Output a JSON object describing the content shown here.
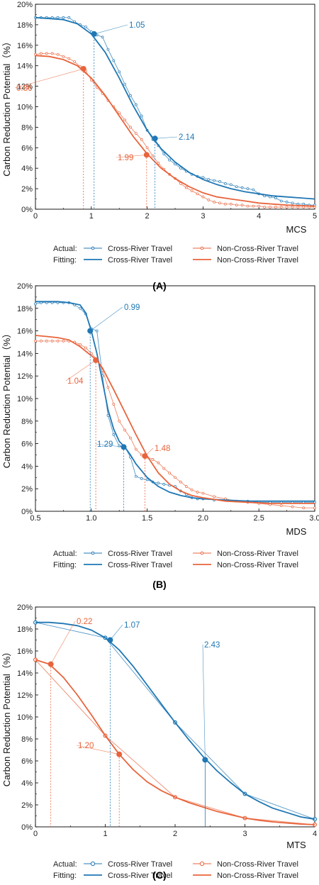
{
  "colors": {
    "blue": "#1f77b4",
    "orange": "#e8643c",
    "axis": "#000000"
  },
  "panels": [
    {
      "id": "A",
      "panel_label": "(A)",
      "xlabel": "MCS",
      "ylabel": "Carbon Reduction Potential（%）",
      "xlim": [
        0,
        5
      ],
      "ylim": [
        0,
        20
      ],
      "xticks": [
        0,
        1,
        2,
        3,
        4,
        5
      ],
      "xtick_labels": [
        "0",
        "1",
        "2",
        "3",
        "4",
        "5"
      ],
      "yticks": [
        0,
        2,
        4,
        6,
        8,
        10,
        12,
        14,
        16,
        18,
        20
      ],
      "ytick_labels": [
        "0%",
        "2%",
        "4%",
        "6%",
        "8%",
        "10%",
        "12%",
        "14%",
        "16%",
        "18%",
        "20%"
      ],
      "legend": {
        "actual_label": "Actual:",
        "fitting_label": "Fitting:",
        "entries": [
          "Cross-River Travel",
          "Non-Cross-River Travel",
          "Cross-River Travel",
          "Non-Cross-River Travel"
        ]
      }
    },
    {
      "id": "B",
      "panel_label": "(B)",
      "xlabel": "MDS",
      "ylabel": "Carbon Reduction Potential（%）",
      "xlim": [
        0.5,
        3.0
      ],
      "ylim": [
        0,
        20
      ],
      "xticks": [
        0.5,
        1.0,
        1.5,
        2.0,
        2.5,
        3.0
      ],
      "xtick_labels": [
        "0.5",
        "1.0",
        "1.5",
        "2.0",
        "2.5",
        "3.0"
      ],
      "yticks": [
        0,
        2,
        4,
        6,
        8,
        10,
        12,
        14,
        16,
        18,
        20
      ],
      "ytick_labels": [
        "0%",
        "2%",
        "4%",
        "6%",
        "8%",
        "10%",
        "12%",
        "14%",
        "16%",
        "18%",
        "20%"
      ],
      "legend": {
        "actual_label": "Actual:",
        "fitting_label": "Fitting:",
        "entries": [
          "Cross-River Travel",
          "Non-Cross-River Travel",
          "Cross-River Travel",
          "Non-Cross-River Travel"
        ]
      }
    },
    {
      "id": "C",
      "panel_label": "(C)",
      "xlabel": "MTS",
      "ylabel": "Carbon Reduction Potential（%）",
      "xlim": [
        0,
        4
      ],
      "ylim": [
        0,
        20
      ],
      "xticks": [
        0,
        1,
        2,
        3,
        4
      ],
      "xtick_labels": [
        "0",
        "1",
        "2",
        "3",
        "4"
      ],
      "yticks": [
        0,
        2,
        4,
        6,
        8,
        10,
        12,
        14,
        16,
        18,
        20
      ],
      "ytick_labels": [
        "0%",
        "2%",
        "4%",
        "6%",
        "8%",
        "10%",
        "12%",
        "14%",
        "16%",
        "18%",
        "20%"
      ],
      "legend": {
        "actual_label": "Actual:",
        "fitting_label": "Fitting:",
        "entries": [
          "Cross-River Travel",
          "Non-Cross-River Travel",
          "Cross-River Travel",
          "Non-Cross-River Travel"
        ]
      }
    }
  ],
  "chart_data": [
    {
      "type": "line",
      "xlabel": "MCS",
      "ylabel": "Carbon Reduction Potential（%）",
      "xlim": [
        0,
        5
      ],
      "ylim": [
        0,
        20
      ],
      "grid": false,
      "legend_placement": "bottom",
      "series": [
        {
          "name": "Cross-River Travel",
          "kind": "actual",
          "color": "#1f77b4",
          "x": [
            0.0,
            0.1,
            0.2,
            0.3,
            0.4,
            0.5,
            0.6,
            0.7,
            0.8,
            0.9,
            1.0,
            1.1,
            1.2,
            1.3,
            1.4,
            1.5,
            1.6,
            1.7,
            1.8,
            1.9,
            2.0,
            2.1,
            2.2,
            2.3,
            2.4,
            2.5,
            2.6,
            2.7,
            2.8,
            2.9,
            3.0,
            3.1,
            3.2,
            3.3,
            3.4,
            3.5,
            3.6,
            3.7,
            3.8,
            3.9,
            4.0,
            4.1,
            4.2,
            4.3,
            4.4,
            4.5,
            4.6,
            4.7,
            4.8,
            4.9,
            5.0
          ],
          "y": [
            18.7,
            18.7,
            18.7,
            18.7,
            18.7,
            18.7,
            18.7,
            18.3,
            18.0,
            17.8,
            17.3,
            17.0,
            16.8,
            15.6,
            14.5,
            13.4,
            12.2,
            11.1,
            10.2,
            9.1,
            7.7,
            6.8,
            6.2,
            5.4,
            4.8,
            4.4,
            4.0,
            3.7,
            3.4,
            3.2,
            3.1,
            2.9,
            2.8,
            2.7,
            2.5,
            2.4,
            2.2,
            2.1,
            2.0,
            1.9,
            1.5,
            1.3,
            1.2,
            1.1,
            0.8,
            0.7,
            0.6,
            0.5,
            0.5,
            0.4,
            0.4
          ]
        },
        {
          "name": "Non-Cross-River Travel",
          "kind": "actual",
          "color": "#e8643c",
          "x": [
            0.0,
            0.1,
            0.2,
            0.3,
            0.4,
            0.5,
            0.6,
            0.7,
            0.8,
            0.9,
            1.0,
            1.1,
            1.2,
            1.3,
            1.4,
            1.5,
            1.6,
            1.7,
            1.8,
            1.9,
            2.0,
            2.1,
            2.2,
            2.3,
            2.4,
            2.5,
            2.6,
            2.7,
            2.8,
            2.9,
            3.0,
            3.1,
            3.2,
            3.3,
            3.4,
            3.5,
            3.6,
            3.7,
            3.8,
            3.9,
            4.0,
            4.1,
            4.2,
            4.3,
            4.4,
            4.5,
            4.6,
            4.7,
            4.8,
            4.9,
            5.0
          ],
          "y": [
            15.1,
            15.2,
            15.2,
            15.2,
            15.1,
            14.9,
            14.7,
            14.4,
            13.9,
            13.5,
            12.6,
            11.9,
            11.3,
            10.6,
            10.0,
            9.4,
            8.7,
            8.0,
            7.4,
            6.8,
            6.0,
            5.2,
            4.5,
            3.9,
            3.4,
            3.0,
            2.5,
            2.1,
            1.8,
            1.5,
            1.2,
            0.9,
            0.7,
            0.6,
            0.5,
            0.5,
            0.4,
            0.4,
            0.3,
            0.3,
            0.3,
            0.2,
            0.2,
            0.2,
            0.2,
            0.2,
            0.2,
            0.2,
            0.2,
            0.2,
            0.2
          ]
        },
        {
          "name": "Cross-River Travel",
          "kind": "fitting",
          "color": "#1f77b4",
          "x": [
            0.0,
            0.25,
            0.5,
            0.75,
            1.0,
            1.25,
            1.5,
            1.75,
            2.0,
            2.25,
            2.5,
            2.75,
            3.0,
            3.25,
            3.5,
            3.75,
            4.0,
            4.25,
            4.5,
            4.75,
            5.0
          ],
          "y": [
            18.7,
            18.6,
            18.5,
            18.1,
            17.1,
            15.3,
            12.8,
            10.1,
            7.7,
            5.9,
            4.6,
            3.6,
            2.9,
            2.4,
            2.0,
            1.7,
            1.5,
            1.3,
            1.2,
            1.1,
            1.0
          ]
        },
        {
          "name": "Non-Cross-River Travel",
          "kind": "fitting",
          "color": "#e8643c",
          "x": [
            0.0,
            0.25,
            0.5,
            0.75,
            1.0,
            1.25,
            1.5,
            1.75,
            2.0,
            2.25,
            2.5,
            2.75,
            3.0,
            3.25,
            3.5,
            3.75,
            4.0,
            4.25,
            4.5,
            4.75,
            5.0
          ],
          "y": [
            15.0,
            14.9,
            14.6,
            14.0,
            12.8,
            11.1,
            9.1,
            7.1,
            5.4,
            4.0,
            3.0,
            2.2,
            1.6,
            1.2,
            1.0,
            0.8,
            0.6,
            0.5,
            0.4,
            0.35,
            0.3
          ]
        }
      ],
      "highlights": [
        {
          "x": 1.05,
          "y": 17.1,
          "label": "1.05",
          "color": "#1f77b4"
        },
        {
          "x": 2.14,
          "y": 6.9,
          "label": "2.14",
          "color": "#1f77b4"
        },
        {
          "x": 0.86,
          "y": 13.7,
          "label": "0.86",
          "color": "#e8643c"
        },
        {
          "x": 1.99,
          "y": 5.3,
          "label": "1.99",
          "color": "#e8643c"
        }
      ]
    },
    {
      "type": "line",
      "xlabel": "MDS",
      "ylabel": "Carbon Reduction Potential（%）",
      "xlim": [
        0.5,
        3.0
      ],
      "ylim": [
        0,
        20
      ],
      "grid": false,
      "legend_placement": "bottom",
      "series": [
        {
          "name": "Cross-River Travel",
          "kind": "actual",
          "color": "#1f77b4",
          "x": [
            0.5,
            0.55,
            0.6,
            0.65,
            0.7,
            0.75,
            0.8,
            0.85,
            0.9,
            0.95,
            1.0,
            1.05,
            1.1,
            1.15,
            1.2,
            1.25,
            1.3,
            1.35,
            1.4,
            1.45,
            1.5,
            1.55,
            1.6,
            1.65,
            1.7,
            1.75,
            1.8,
            1.85,
            1.9,
            1.95,
            2.0,
            2.1,
            2.2,
            2.3,
            2.4,
            2.5,
            2.6,
            2.7,
            2.8,
            2.9,
            3.0
          ],
          "y": [
            18.4,
            18.5,
            18.5,
            18.5,
            18.5,
            18.5,
            18.5,
            18.3,
            18.0,
            17.5,
            16.2,
            16.0,
            12.0,
            8.5,
            6.8,
            5.8,
            5.7,
            4.8,
            3.1,
            2.9,
            2.8,
            2.6,
            2.5,
            2.4,
            2.3,
            2.2,
            1.8,
            1.5,
            1.2,
            1.1,
            1.1,
            1.0,
            1.0,
            0.9,
            0.9,
            0.8,
            0.8,
            0.8,
            0.8,
            0.8,
            0.8
          ]
        },
        {
          "name": "Non-Cross-River Travel",
          "kind": "actual",
          "color": "#e8643c",
          "x": [
            0.5,
            0.55,
            0.6,
            0.65,
            0.7,
            0.75,
            0.8,
            0.85,
            0.9,
            0.95,
            1.0,
            1.05,
            1.1,
            1.15,
            1.2,
            1.25,
            1.3,
            1.35,
            1.4,
            1.45,
            1.5,
            1.55,
            1.6,
            1.65,
            1.7,
            1.75,
            1.8,
            1.85,
            1.9,
            1.95,
            2.0,
            2.1,
            2.2,
            2.3,
            2.4,
            2.5,
            2.6,
            2.7,
            2.8,
            2.9,
            3.0
          ],
          "y": [
            15.1,
            15.1,
            15.1,
            15.1,
            15.1,
            15.1,
            15.1,
            15.0,
            14.8,
            14.5,
            14.0,
            13.5,
            12.5,
            11.0,
            9.5,
            8.0,
            7.2,
            6.5,
            5.5,
            5.0,
            4.8,
            4.6,
            4.3,
            3.8,
            3.4,
            3.0,
            2.6,
            2.2,
            1.9,
            1.7,
            1.6,
            1.3,
            1.1,
            0.9,
            0.8,
            0.7,
            0.6,
            0.5,
            0.4,
            0.3,
            0.3
          ]
        },
        {
          "name": "Cross-River Travel",
          "kind": "fitting",
          "color": "#1f77b4",
          "x": [
            0.5,
            0.6,
            0.7,
            0.8,
            0.9,
            0.95,
            1.0,
            1.05,
            1.1,
            1.15,
            1.2,
            1.25,
            1.3,
            1.35,
            1.4,
            1.5,
            1.6,
            1.7,
            1.8,
            1.9,
            2.0,
            2.2,
            2.4,
            2.6,
            2.8,
            3.0
          ],
          "y": [
            18.6,
            18.6,
            18.6,
            18.5,
            18.3,
            17.6,
            16.0,
            14.0,
            11.5,
            9.0,
            7.3,
            6.2,
            5.7,
            5.0,
            4.2,
            3.0,
            2.2,
            1.7,
            1.4,
            1.2,
            1.1,
            1.0,
            0.9,
            0.9,
            0.9,
            0.9
          ]
        },
        {
          "name": "Non-Cross-River Travel",
          "kind": "fitting",
          "color": "#e8643c",
          "x": [
            0.5,
            0.6,
            0.7,
            0.8,
            0.9,
            1.0,
            1.05,
            1.1,
            1.2,
            1.3,
            1.4,
            1.5,
            1.6,
            1.7,
            1.8,
            1.9,
            2.0,
            2.2,
            2.4,
            2.6,
            2.8,
            3.0
          ],
          "y": [
            15.6,
            15.5,
            15.4,
            15.2,
            14.6,
            13.8,
            13.4,
            12.7,
            10.8,
            8.8,
            6.8,
            4.9,
            3.4,
            2.4,
            1.8,
            1.4,
            1.2,
            0.9,
            0.8,
            0.7,
            0.7,
            0.7
          ]
        }
      ],
      "highlights": [
        {
          "x": 0.99,
          "y": 16.0,
          "label": "0.99",
          "color": "#1f77b4"
        },
        {
          "x": 1.29,
          "y": 5.7,
          "label": "1.29",
          "color": "#1f77b4"
        },
        {
          "x": 1.04,
          "y": 13.4,
          "label": "1.04",
          "color": "#e8643c"
        },
        {
          "x": 1.48,
          "y": 4.9,
          "label": "1.48",
          "color": "#e8643c"
        }
      ]
    },
    {
      "type": "line",
      "xlabel": "MTS",
      "ylabel": "Carbon Reduction Potential（%）",
      "xlim": [
        0,
        4
      ],
      "ylim": [
        0,
        20
      ],
      "grid": false,
      "legend_placement": "bottom",
      "series": [
        {
          "name": "Cross-River Travel",
          "kind": "actual",
          "color": "#1f77b4",
          "x": [
            0,
            1,
            2,
            3,
            4
          ],
          "y": [
            18.6,
            17.2,
            9.5,
            3.0,
            0.7
          ]
        },
        {
          "name": "Non-Cross-River Travel",
          "kind": "actual",
          "color": "#e8643c",
          "x": [
            0,
            1,
            2,
            3,
            4
          ],
          "y": [
            15.2,
            8.3,
            2.7,
            0.8,
            0.2
          ]
        },
        {
          "name": "Cross-River Travel",
          "kind": "fitting",
          "color": "#1f77b4",
          "x": [
            0.0,
            0.2,
            0.4,
            0.6,
            0.8,
            1.0,
            1.2,
            1.4,
            1.6,
            1.8,
            2.0,
            2.2,
            2.4,
            2.6,
            2.8,
            3.0,
            3.2,
            3.4,
            3.6,
            3.8,
            4.0
          ],
          "y": [
            18.6,
            18.6,
            18.5,
            18.3,
            17.9,
            17.2,
            16.1,
            14.6,
            12.9,
            11.2,
            9.5,
            7.9,
            6.4,
            5.1,
            4.0,
            3.0,
            2.3,
            1.7,
            1.3,
            0.9,
            0.7
          ]
        },
        {
          "name": "Non-Cross-River Travel",
          "kind": "fitting",
          "color": "#e8643c",
          "x": [
            0.0,
            0.2,
            0.4,
            0.6,
            0.8,
            1.0,
            1.2,
            1.4,
            1.6,
            1.8,
            2.0,
            2.2,
            2.4,
            2.6,
            2.8,
            3.0,
            3.2,
            3.4,
            3.6,
            3.8,
            4.0
          ],
          "y": [
            15.2,
            14.8,
            13.6,
            12.0,
            10.2,
            8.3,
            6.6,
            5.2,
            4.1,
            3.3,
            2.7,
            2.2,
            1.8,
            1.4,
            1.1,
            0.8,
            0.6,
            0.45,
            0.35,
            0.25,
            0.2
          ]
        }
      ],
      "highlights": [
        {
          "x": 1.07,
          "y": 17.0,
          "label": "1.07",
          "color": "#1f77b4"
        },
        {
          "x": 2.43,
          "y": 6.1,
          "label": "2.43",
          "color": "#1f77b4"
        },
        {
          "x": 0.22,
          "y": 14.8,
          "label": "0.22",
          "color": "#e8643c"
        },
        {
          "x": 1.2,
          "y": 6.6,
          "label": "1.20",
          "color": "#e8643c"
        }
      ]
    }
  ]
}
